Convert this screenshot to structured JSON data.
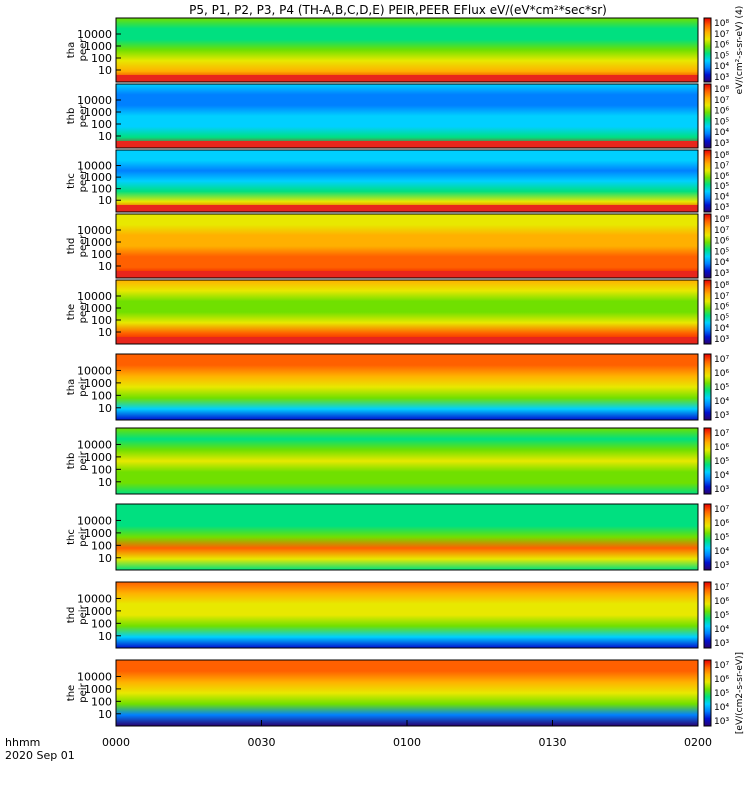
{
  "title": "P5, P1, P2, P3, P4 (TH-A,B,C,D,E) PEIR,PEER EFlux eV/(eV*cm²*sec*sr)",
  "colors": {
    "background": "#ffffff",
    "fill_red": "#e8261c",
    "frame": "#000000"
  },
  "colorscale": [
    "#2a0070",
    "#0010d0",
    "#0080ff",
    "#00d0ff",
    "#00e080",
    "#70e000",
    "#e8e800",
    "#ffb000",
    "#ff6000",
    "#e80000"
  ],
  "x_axis": {
    "prefix_line1": "hhmm",
    "prefix_line2": "2020 Sep 01",
    "ticks": [
      "0000",
      "0030",
      "0100",
      "0130",
      "0200"
    ]
  },
  "chart_data": {
    "type": "heatmap",
    "x_range": [
      "0000",
      "0200"
    ],
    "x_ticks": [
      "0000",
      "0030",
      "0100",
      "0130",
      "0200"
    ],
    "y_scale": "log",
    "y_ticks": [
      "10",
      "100",
      "1000",
      "10000"
    ],
    "panels": [
      {
        "ylabel1": "tha",
        "ylabel2": "peer",
        "cb_ticks": [
          "10⁸",
          "10⁷",
          "10⁶",
          "10⁵",
          "10⁴",
          "10³"
        ],
        "cb_label": "eV/(cm²-s-sr-eV) (4)"
      },
      {
        "ylabel1": "thb",
        "ylabel2": "peer",
        "cb_ticks": [
          "10⁸",
          "10⁷",
          "10⁶",
          "10⁵",
          "10⁴",
          "10³"
        ],
        "cb_label": ""
      },
      {
        "ylabel1": "thc",
        "ylabel2": "peer",
        "cb_ticks": [
          "10⁸",
          "10⁷",
          "10⁶",
          "10⁵",
          "10⁴",
          "10³"
        ],
        "cb_label": ""
      },
      {
        "ylabel1": "thd",
        "ylabel2": "peer",
        "cb_ticks": [
          "10⁸",
          "10⁷",
          "10⁶",
          "10⁵",
          "10⁴",
          "10³"
        ],
        "cb_label": ""
      },
      {
        "ylabel1": "the",
        "ylabel2": "peer",
        "cb_ticks": [
          "10⁸",
          "10⁷",
          "10⁶",
          "10⁵",
          "10⁴",
          "10³"
        ],
        "cb_label": ""
      },
      {
        "ylabel1": "tha",
        "ylabel2": "peir",
        "cb_ticks": [
          "10⁷",
          "10⁶",
          "10⁵",
          "10⁴",
          "10³"
        ],
        "cb_label": ""
      },
      {
        "ylabel1": "thb",
        "ylabel2": "peir",
        "cb_ticks": [
          "10⁷",
          "10⁶",
          "10⁵",
          "10⁴",
          "10³"
        ],
        "cb_label": ""
      },
      {
        "ylabel1": "thc",
        "ylabel2": "peir",
        "cb_ticks": [
          "10⁷",
          "10⁶",
          "10⁵",
          "10⁴",
          "10³"
        ],
        "cb_label": ""
      },
      {
        "ylabel1": "thd",
        "ylabel2": "peir",
        "cb_ticks": [
          "10⁷",
          "10⁶",
          "10⁵",
          "10⁴",
          "10³"
        ],
        "cb_label": ""
      },
      {
        "ylabel1": "the",
        "ylabel2": "peir",
        "cb_ticks": [
          "10⁷",
          "10⁶",
          "10⁵",
          "10⁴",
          "10³"
        ],
        "cb_label": "[eV/(cm2-s-sr-eV)]"
      }
    ]
  }
}
